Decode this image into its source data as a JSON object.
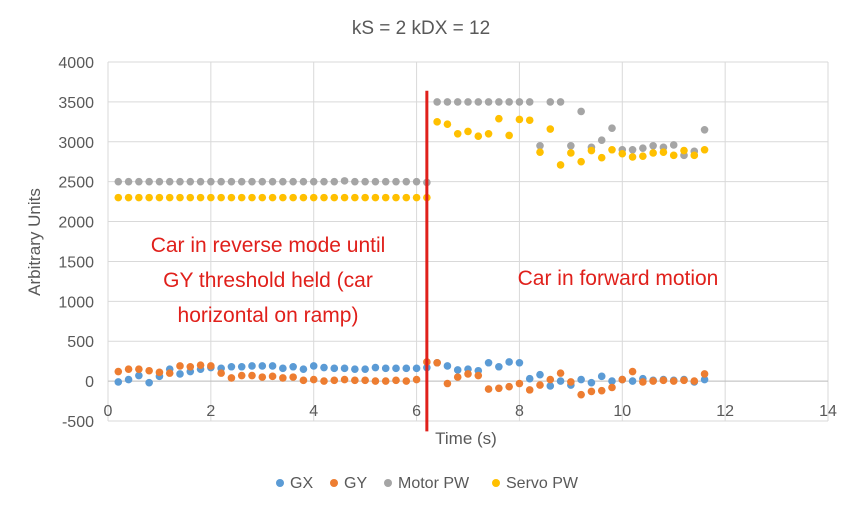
{
  "chart_data": {
    "type": "scatter",
    "title": "kS = 2 kDX = 12",
    "xlabel": "Time (s)",
    "ylabel": "Arbitrary Units",
    "xlim": [
      0,
      14
    ],
    "ylim": [
      -500,
      4000
    ],
    "xticks": [
      0,
      2,
      4,
      6,
      8,
      10,
      12,
      14
    ],
    "xtick_labels": [
      "0",
      "2",
      "4",
      "6",
      "8",
      "10",
      "12",
      "14"
    ],
    "yticks": [
      -500,
      0,
      500,
      1000,
      1500,
      2000,
      2500,
      3000,
      3500,
      4000
    ],
    "ytick_labels": [
      "-500",
      "0",
      "500",
      "1000",
      "1500",
      "2000",
      "2500",
      "3000",
      "3500",
      "4000"
    ],
    "grid": true,
    "legend": "bottom",
    "series": [
      {
        "name": "GX",
        "color": "#5b9bd5",
        "x": [
          0.2,
          0.4,
          0.6,
          0.8,
          1.0,
          1.2,
          1.4,
          1.6,
          1.8,
          2.0,
          2.2,
          2.4,
          2.6,
          2.8,
          3.0,
          3.2,
          3.4,
          3.6,
          3.8,
          4.0,
          4.2,
          4.4,
          4.6,
          4.8,
          5.0,
          5.2,
          5.4,
          5.6,
          5.8,
          6.0,
          6.2,
          6.4,
          6.6,
          6.8,
          7.0,
          7.2,
          7.4,
          7.6,
          7.8,
          8.0,
          8.2,
          8.4,
          8.6,
          8.8,
          9.0,
          9.2,
          9.4,
          9.6,
          9.8,
          10.0,
          10.2,
          10.4,
          10.6,
          10.8,
          11.0,
          11.2,
          11.4,
          11.6
        ],
        "y": [
          -10,
          20,
          70,
          -20,
          60,
          150,
          90,
          120,
          150,
          170,
          160,
          180,
          180,
          190,
          190,
          190,
          160,
          180,
          150,
          190,
          170,
          160,
          160,
          150,
          150,
          170,
          160,
          160,
          160,
          160,
          170,
          230,
          190,
          140,
          150,
          130,
          230,
          180,
          240,
          230,
          30,
          80,
          -60,
          0,
          -50,
          20,
          -20,
          60,
          0,
          20,
          0,
          30,
          10,
          20,
          10,
          20,
          -10,
          20
        ]
      },
      {
        "name": "GY",
        "color": "#ed7d31",
        "x": [
          0.2,
          0.4,
          0.6,
          0.8,
          1.0,
          1.2,
          1.4,
          1.6,
          1.8,
          2.0,
          2.2,
          2.4,
          2.6,
          2.8,
          3.0,
          3.2,
          3.4,
          3.6,
          3.8,
          4.0,
          4.2,
          4.4,
          4.6,
          4.8,
          5.0,
          5.2,
          5.4,
          5.6,
          5.8,
          6.0,
          6.2,
          6.4,
          6.6,
          6.8,
          7.0,
          7.2,
          7.4,
          7.6,
          7.8,
          8.0,
          8.2,
          8.4,
          8.6,
          8.8,
          9.0,
          9.2,
          9.4,
          9.6,
          9.8,
          10.0,
          10.2,
          10.4,
          10.6,
          10.8,
          11.0,
          11.2,
          11.4,
          11.6
        ],
        "y": [
          120,
          150,
          150,
          130,
          110,
          100,
          190,
          180,
          200,
          190,
          100,
          40,
          70,
          70,
          50,
          60,
          40,
          50,
          10,
          20,
          0,
          10,
          20,
          10,
          10,
          0,
          0,
          10,
          0,
          20,
          240,
          230,
          -30,
          50,
          90,
          70,
          -100,
          -90,
          -70,
          -30,
          -110,
          -50,
          20,
          100,
          -10,
          -170,
          -130,
          -120,
          -80,
          20,
          120,
          -10,
          0,
          10,
          0,
          10,
          0,
          90
        ]
      },
      {
        "name": "Motor PW",
        "color": "#a5a5a5",
        "x": [
          0.2,
          0.4,
          0.6,
          0.8,
          1.0,
          1.2,
          1.4,
          1.6,
          1.8,
          2.0,
          2.2,
          2.4,
          2.6,
          2.8,
          3.0,
          3.2,
          3.4,
          3.6,
          3.8,
          4.0,
          4.2,
          4.4,
          4.6,
          4.8,
          5.0,
          5.2,
          5.4,
          5.6,
          5.8,
          6.0,
          6.2,
          6.4,
          6.6,
          6.8,
          7.0,
          7.2,
          7.4,
          7.6,
          7.8,
          8.0,
          8.2,
          8.4,
          8.6,
          8.8,
          9.0,
          9.2,
          9.4,
          9.6,
          9.8,
          10.0,
          10.2,
          10.4,
          10.6,
          10.8,
          11.0,
          11.2,
          11.4,
          11.6
        ],
        "y": [
          2500,
          2500,
          2500,
          2500,
          2500,
          2500,
          2500,
          2500,
          2500,
          2500,
          2500,
          2500,
          2500,
          2500,
          2500,
          2500,
          2500,
          2500,
          2500,
          2500,
          2500,
          2500,
          2510,
          2500,
          2500,
          2500,
          2500,
          2500,
          2500,
          2500,
          2490,
          3500,
          3500,
          3500,
          3500,
          3500,
          3500,
          3500,
          3500,
          3500,
          3500,
          2950,
          3500,
          3500,
          2950,
          3380,
          2930,
          3020,
          3170,
          2900,
          2900,
          2920,
          2950,
          2930,
          2960,
          2830,
          2880,
          3150
        ]
      },
      {
        "name": "Servo PW",
        "color": "#ffc000",
        "x": [
          0.2,
          0.4,
          0.6,
          0.8,
          1.0,
          1.2,
          1.4,
          1.6,
          1.8,
          2.0,
          2.2,
          2.4,
          2.6,
          2.8,
          3.0,
          3.2,
          3.4,
          3.6,
          3.8,
          4.0,
          4.2,
          4.4,
          4.6,
          4.8,
          5.0,
          5.2,
          5.4,
          5.6,
          5.8,
          6.0,
          6.2,
          6.4,
          6.6,
          6.8,
          7.0,
          7.2,
          7.4,
          7.6,
          7.8,
          8.0,
          8.2,
          8.4,
          8.6,
          8.8,
          9.0,
          9.2,
          9.4,
          9.6,
          9.8,
          10.0,
          10.2,
          10.4,
          10.6,
          10.8,
          11.0,
          11.2,
          11.4,
          11.6
        ],
        "y": [
          2300,
          2300,
          2300,
          2300,
          2300,
          2300,
          2300,
          2300,
          2300,
          2300,
          2300,
          2300,
          2300,
          2300,
          2300,
          2300,
          2300,
          2300,
          2300,
          2300,
          2300,
          2300,
          2300,
          2300,
          2300,
          2300,
          2300,
          2300,
          2300,
          2300,
          2300,
          3250,
          3220,
          3100,
          3130,
          3070,
          3100,
          3290,
          3080,
          3280,
          3270,
          2870,
          3160,
          2710,
          2860,
          2750,
          2890,
          2800,
          2900,
          2850,
          2810,
          2820,
          2860,
          2870,
          2830,
          2890,
          2830,
          2900
        ]
      }
    ],
    "marker_line": {
      "x": 6.2,
      "y_top": 3640,
      "y_bottom": -630,
      "color": "#e0201b"
    },
    "annotations": [
      {
        "lines": [
          "Car in reverse mode until",
          "GY threshold held (car",
          "horizontal on ramp)"
        ]
      },
      {
        "lines": [
          "Car in forward motion"
        ]
      }
    ]
  }
}
